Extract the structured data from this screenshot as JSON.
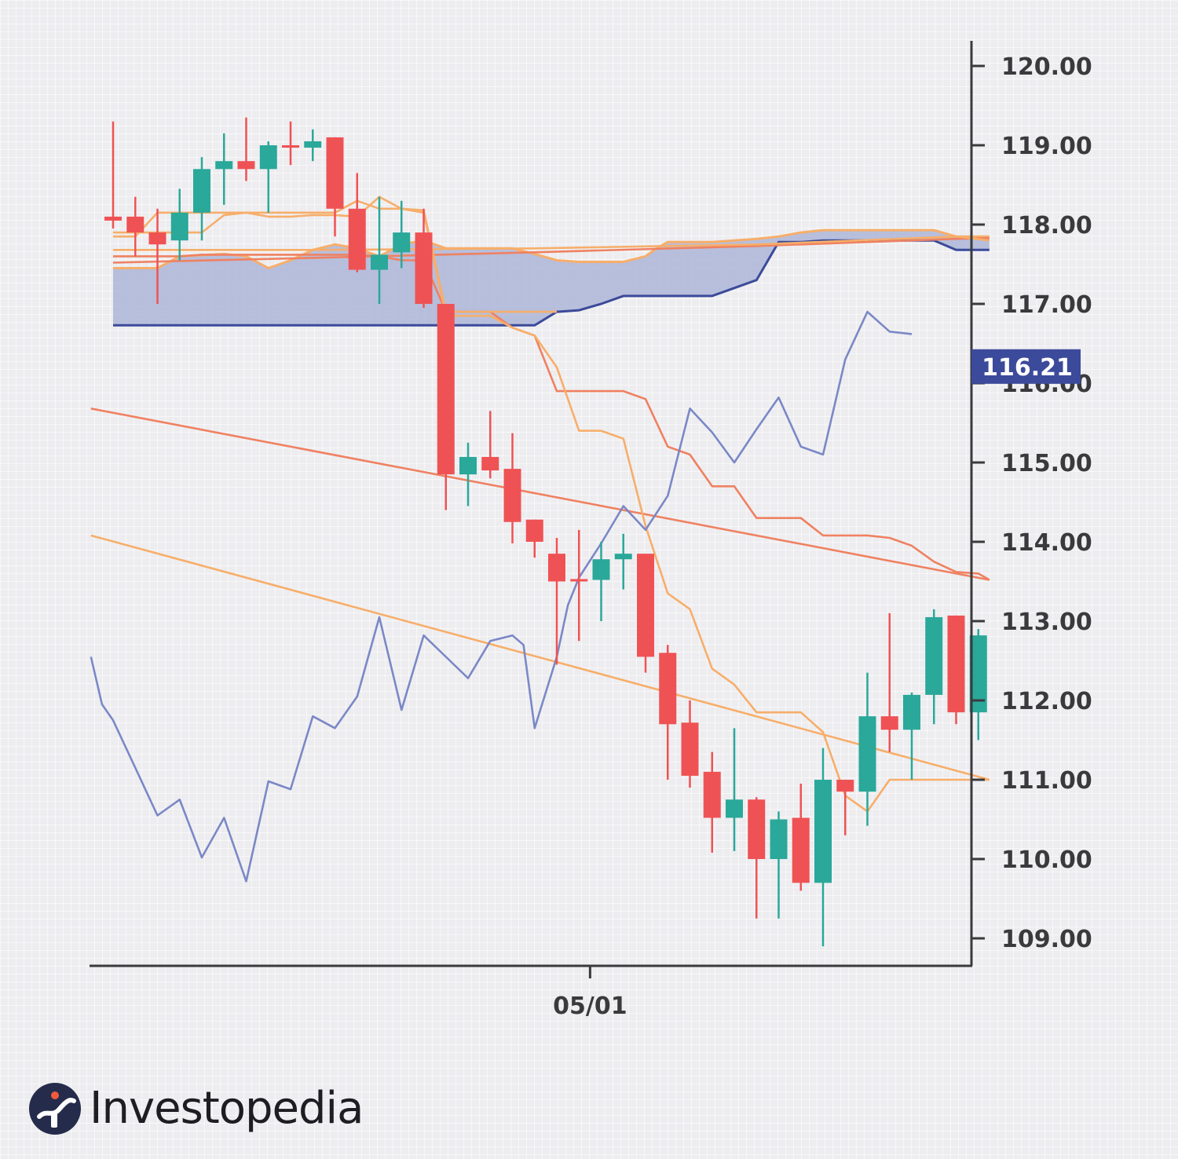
{
  "chart_data": {
    "type": "candlestick",
    "y_ticks": [
      "120.00",
      "119.00",
      "118.00",
      "117.00",
      "116.00",
      "115.00",
      "114.00",
      "113.00",
      "112.00",
      "111.00",
      "110.00",
      "109.00"
    ],
    "ylim": [
      108.6,
      120.6
    ],
    "x_tick_label": "05/01",
    "x_tick_index": 21.5,
    "last_price_label": "116.21",
    "last_price_value": 116.21,
    "colors": {
      "up": "#2aa89a",
      "down": "#ef5254",
      "cloud_fill": "#a9b2d6",
      "cloud_edge": "#3b4a9a",
      "tenkan": "#f7ae6a",
      "kijun": "#ef8161",
      "trend_upper": "#ef8161",
      "trend_lower": "#f7ae6a",
      "oscillator": "#7b88c6",
      "axis": "#3a3a3d",
      "badge": "#3b4a9a"
    },
    "candles": [
      {
        "o": 118.1,
        "h": 119.3,
        "l": 117.95,
        "c": 118.05
      },
      {
        "o": 118.1,
        "h": 118.35,
        "l": 117.6,
        "c": 117.9
      },
      {
        "o": 117.9,
        "h": 118.2,
        "l": 117.0,
        "c": 117.75
      },
      {
        "o": 117.8,
        "h": 118.45,
        "l": 117.55,
        "c": 118.15
      },
      {
        "o": 118.15,
        "h": 118.85,
        "l": 117.8,
        "c": 118.7
      },
      {
        "o": 118.7,
        "h": 119.15,
        "l": 118.25,
        "c": 118.8
      },
      {
        "o": 118.8,
        "h": 119.35,
        "l": 118.55,
        "c": 118.7
      },
      {
        "o": 118.7,
        "h": 119.05,
        "l": 118.15,
        "c": 119.0
      },
      {
        "o": 119.0,
        "h": 119.3,
        "l": 118.75,
        "c": 118.97
      },
      {
        "o": 118.97,
        "h": 119.2,
        "l": 118.8,
        "c": 119.05
      },
      {
        "o": 119.1,
        "h": 119.1,
        "l": 117.85,
        "c": 118.2
      },
      {
        "o": 118.2,
        "h": 118.65,
        "l": 117.4,
        "c": 117.43
      },
      {
        "o": 117.43,
        "h": 118.35,
        "l": 117.0,
        "c": 117.62
      },
      {
        "o": 117.65,
        "h": 118.3,
        "l": 117.45,
        "c": 117.9
      },
      {
        "o": 117.9,
        "h": 118.2,
        "l": 116.95,
        "c": 117.0
      },
      {
        "o": 117.0,
        "h": 117.0,
        "l": 114.4,
        "c": 114.85
      },
      {
        "o": 114.85,
        "h": 115.25,
        "l": 114.45,
        "c": 115.07
      },
      {
        "o": 115.07,
        "h": 115.65,
        "l": 114.8,
        "c": 114.9
      },
      {
        "o": 114.92,
        "h": 115.37,
        "l": 113.98,
        "c": 114.25
      },
      {
        "o": 114.28,
        "h": 114.28,
        "l": 113.8,
        "c": 114.0
      },
      {
        "o": 113.85,
        "h": 114.05,
        "l": 112.45,
        "c": 113.5
      },
      {
        "o": 113.53,
        "h": 114.15,
        "l": 112.75,
        "c": 113.5
      },
      {
        "o": 113.52,
        "h": 114.0,
        "l": 113.0,
        "c": 113.78
      },
      {
        "o": 113.78,
        "h": 114.1,
        "l": 113.4,
        "c": 113.85
      },
      {
        "o": 113.85,
        "h": 113.85,
        "l": 112.35,
        "c": 112.55
      },
      {
        "o": 112.6,
        "h": 112.7,
        "l": 111.0,
        "c": 111.7
      },
      {
        "o": 111.72,
        "h": 112.0,
        "l": 110.9,
        "c": 111.05
      },
      {
        "o": 111.1,
        "h": 111.35,
        "l": 110.08,
        "c": 110.52
      },
      {
        "o": 110.52,
        "h": 111.65,
        "l": 110.1,
        "c": 110.75
      },
      {
        "o": 110.75,
        "h": 110.78,
        "l": 109.25,
        "c": 110.0
      },
      {
        "o": 110.0,
        "h": 110.6,
        "l": 109.25,
        "c": 110.5
      },
      {
        "o": 110.52,
        "h": 110.95,
        "l": 109.6,
        "c": 109.7
      },
      {
        "o": 109.7,
        "h": 111.4,
        "l": 108.9,
        "c": 111.0
      },
      {
        "o": 111.0,
        "h": 111.0,
        "l": 110.3,
        "c": 110.85
      },
      {
        "o": 110.85,
        "h": 112.35,
        "l": 110.42,
        "c": 111.8
      },
      {
        "o": 111.8,
        "h": 113.1,
        "l": 111.35,
        "c": 111.63
      },
      {
        "o": 111.63,
        "h": 112.1,
        "l": 111.0,
        "c": 112.07
      },
      {
        "o": 112.07,
        "h": 113.15,
        "l": 111.7,
        "c": 113.05
      },
      {
        "o": 113.07,
        "h": 113.07,
        "l": 111.7,
        "c": 111.85
      },
      {
        "o": 111.85,
        "h": 112.9,
        "l": 111.5,
        "c": 112.82
      }
    ],
    "cloud_upper": [
      [
        0,
        117.45
      ],
      [
        2,
        117.45
      ],
      [
        3,
        117.6
      ],
      [
        5,
        117.63
      ],
      [
        6,
        117.6
      ],
      [
        7,
        117.45
      ],
      [
        8,
        117.55
      ],
      [
        9,
        117.68
      ],
      [
        10,
        117.75
      ],
      [
        11,
        117.7
      ],
      [
        12,
        117.6
      ],
      [
        13,
        117.75
      ],
      [
        14,
        117.8
      ],
      [
        15,
        117.7
      ],
      [
        16,
        117.7
      ],
      [
        17,
        117.7
      ],
      [
        18,
        117.7
      ],
      [
        19,
        117.63
      ],
      [
        20,
        117.55
      ],
      [
        21,
        117.53
      ],
      [
        22,
        117.53
      ],
      [
        23,
        117.53
      ],
      [
        24,
        117.6
      ],
      [
        24.5,
        117.7
      ],
      [
        25,
        117.78
      ],
      [
        26,
        117.78
      ],
      [
        27,
        117.78
      ],
      [
        28,
        117.8
      ],
      [
        29,
        117.82
      ],
      [
        30,
        117.85
      ],
      [
        31,
        117.9
      ],
      [
        32,
        117.93
      ],
      [
        33,
        117.93
      ],
      [
        34,
        117.93
      ],
      [
        35,
        117.93
      ],
      [
        36,
        117.93
      ],
      [
        37,
        117.93
      ],
      [
        38,
        117.85
      ],
      [
        39,
        117.85
      ],
      [
        39.5,
        117.85
      ]
    ],
    "cloud_lower": [
      [
        0,
        116.73
      ],
      [
        19,
        116.73
      ],
      [
        20,
        116.9
      ],
      [
        21,
        116.92
      ],
      [
        22,
        117.0
      ],
      [
        23,
        117.1
      ],
      [
        24,
        117.1
      ],
      [
        25,
        117.1
      ],
      [
        26,
        117.1
      ],
      [
        27,
        117.1
      ],
      [
        28,
        117.2
      ],
      [
        29,
        117.3
      ],
      [
        30,
        117.78
      ],
      [
        31,
        117.78
      ],
      [
        32,
        117.8
      ],
      [
        33,
        117.8
      ],
      [
        34,
        117.8
      ],
      [
        35,
        117.8
      ],
      [
        36,
        117.8
      ],
      [
        37,
        117.8
      ],
      [
        38,
        117.68
      ],
      [
        39,
        117.68
      ],
      [
        39.5,
        117.68
      ]
    ],
    "tenkan": [
      [
        0,
        117.9
      ],
      [
        1,
        117.9
      ],
      [
        2,
        117.9
      ],
      [
        3,
        117.9
      ],
      [
        4,
        117.9
      ],
      [
        5,
        118.12
      ],
      [
        6,
        118.15
      ],
      [
        7,
        118.15
      ],
      [
        8,
        118.15
      ],
      [
        9,
        118.15
      ],
      [
        10,
        118.15
      ],
      [
        11,
        118.3
      ],
      [
        12,
        118.2
      ],
      [
        13,
        118.2
      ],
      [
        14,
        118.15
      ],
      [
        15,
        116.85
      ],
      [
        16,
        116.85
      ],
      [
        17,
        116.85
      ],
      [
        18,
        116.7
      ],
      [
        19,
        116.6
      ],
      [
        20,
        116.2
      ],
      [
        21,
        115.4
      ],
      [
        22,
        115.4
      ],
      [
        23,
        115.3
      ],
      [
        24,
        114.2
      ],
      [
        25,
        113.35
      ],
      [
        26,
        113.15
      ],
      [
        27,
        112.4
      ],
      [
        28,
        112.2
      ],
      [
        29,
        111.85
      ],
      [
        30,
        111.85
      ],
      [
        31,
        111.85
      ],
      [
        32,
        111.6
      ],
      [
        33,
        110.8
      ],
      [
        34,
        110.6
      ],
      [
        35,
        111.0
      ],
      [
        36,
        111.0
      ],
      [
        37,
        111.0
      ],
      [
        38,
        111.0
      ],
      [
        39,
        111.0
      ],
      [
        39.5,
        111.0
      ]
    ],
    "kijun": [
      [
        0,
        117.6
      ],
      [
        1,
        117.6
      ],
      [
        2,
        117.6
      ],
      [
        3,
        117.6
      ],
      [
        4,
        117.62
      ],
      [
        5,
        117.62
      ],
      [
        6,
        117.62
      ],
      [
        7,
        117.62
      ],
      [
        8,
        117.62
      ],
      [
        9,
        117.62
      ],
      [
        10,
        117.62
      ],
      [
        11,
        117.62
      ],
      [
        12,
        117.6
      ],
      [
        13,
        117.55
      ],
      [
        14,
        117.55
      ],
      [
        15,
        116.9
      ],
      [
        16,
        116.9
      ],
      [
        17,
        116.9
      ],
      [
        18,
        116.7
      ],
      [
        19,
        116.6
      ],
      [
        20,
        115.9
      ],
      [
        21,
        115.9
      ],
      [
        22,
        115.9
      ],
      [
        23,
        115.9
      ],
      [
        24,
        115.8
      ],
      [
        25,
        115.2
      ],
      [
        26,
        115.1
      ],
      [
        27,
        114.7
      ],
      [
        28,
        114.7
      ],
      [
        29,
        114.3
      ],
      [
        30,
        114.3
      ],
      [
        31,
        114.3
      ],
      [
        32,
        114.08
      ],
      [
        33,
        114.08
      ],
      [
        34,
        114.08
      ],
      [
        35,
        114.05
      ],
      [
        36,
        113.95
      ],
      [
        37,
        113.75
      ],
      [
        38,
        113.62
      ],
      [
        39,
        113.6
      ],
      [
        39.5,
        113.52
      ]
    ],
    "chikou": [
      [
        0,
        117.85
      ],
      [
        1,
        117.85
      ],
      [
        2,
        118.15
      ],
      [
        3,
        118.15
      ],
      [
        4,
        118.15
      ],
      [
        5,
        118.15
      ],
      [
        6,
        118.15
      ],
      [
        7,
        118.1
      ],
      [
        8,
        118.1
      ],
      [
        9,
        118.12
      ],
      [
        10,
        118.12
      ],
      [
        11,
        118.1
      ],
      [
        12,
        118.35
      ],
      [
        13,
        118.2
      ],
      [
        14,
        118.18
      ],
      [
        15,
        116.9
      ],
      [
        16,
        116.9
      ],
      [
        17,
        116.9
      ],
      [
        18,
        116.9
      ],
      [
        19,
        116.9
      ],
      [
        20,
        116.9
      ]
    ],
    "lagging_upper": [
      [
        0,
        117.52
      ],
      [
        9,
        117.58
      ],
      [
        19,
        117.65
      ],
      [
        29,
        117.73
      ],
      [
        38,
        117.82
      ],
      [
        39.5,
        117.83
      ]
    ],
    "lagging_lower": [
      [
        0,
        117.68
      ],
      [
        9,
        117.68
      ],
      [
        19,
        117.7
      ],
      [
        29,
        117.75
      ],
      [
        38,
        117.85
      ],
      [
        39.5,
        117.8
      ]
    ],
    "trend_upper": [
      [
        -1,
        115.68
      ],
      [
        39.5,
        113.52
      ]
    ],
    "trend_lower": [
      [
        -1,
        114.08
      ],
      [
        39.5,
        111.0
      ]
    ],
    "oscillator": [
      [
        -1,
        112.55
      ],
      [
        -0.5,
        111.95
      ],
      [
        0,
        111.75
      ],
      [
        1,
        111.15
      ],
      [
        2,
        110.55
      ],
      [
        3,
        110.75
      ],
      [
        4,
        110.02
      ],
      [
        5,
        110.52
      ],
      [
        6,
        109.72
      ],
      [
        7,
        110.98
      ],
      [
        8,
        110.88
      ],
      [
        9,
        111.8
      ],
      [
        10,
        111.65
      ],
      [
        11,
        112.05
      ],
      [
        12,
        113.05
      ],
      [
        13,
        111.88
      ],
      [
        14,
        112.82
      ],
      [
        15,
        112.55
      ],
      [
        16,
        112.28
      ],
      [
        17,
        112.75
      ],
      [
        18,
        112.82
      ],
      [
        18.5,
        112.7
      ],
      [
        19,
        111.65
      ],
      [
        20,
        112.55
      ],
      [
        20.5,
        113.2
      ],
      [
        21,
        113.55
      ],
      [
        22,
        113.98
      ],
      [
        23,
        114.45
      ],
      [
        24,
        114.15
      ],
      [
        25,
        114.58
      ],
      [
        26,
        115.68
      ],
      [
        27,
        115.38
      ],
      [
        28,
        115.0
      ],
      [
        29,
        115.42
      ],
      [
        30,
        115.82
      ],
      [
        31,
        115.2
      ],
      [
        32,
        115.1
      ],
      [
        33,
        116.3
      ],
      [
        34,
        116.9
      ],
      [
        35,
        116.65
      ],
      [
        36,
        116.62
      ]
    ]
  },
  "brand": {
    "name": "Investopedia"
  }
}
